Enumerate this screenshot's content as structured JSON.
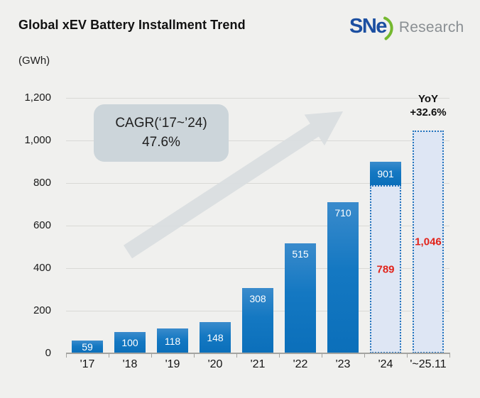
{
  "header": {
    "title": "Global xEV Battery Installment Trend",
    "logo": {
      "brand": "SNe",
      "suffix": "Research"
    }
  },
  "chart_data": {
    "type": "bar",
    "title": "Global xEV Battery Installment Trend",
    "unit": "GWh",
    "ylabel": "(GWh)",
    "xlabel": "",
    "ylim": [
      0,
      1200
    ],
    "ytick_interval": 200,
    "ytick_labels": [
      "1,200",
      "1,000",
      "800",
      "600",
      "400",
      "200",
      "0"
    ],
    "grid": true,
    "legend": false,
    "categories": [
      "'17",
      "'18",
      "'19",
      "'20",
      "'21",
      "'22",
      "'23",
      "'24",
      "'~25.11"
    ],
    "bars": [
      {
        "category": "'17",
        "value": 59,
        "display": "59",
        "style": "actual"
      },
      {
        "category": "'18",
        "value": 100,
        "display": "100",
        "style": "actual"
      },
      {
        "category": "'19",
        "value": 118,
        "display": "118",
        "style": "actual"
      },
      {
        "category": "'20",
        "value": 148,
        "display": "148",
        "style": "actual"
      },
      {
        "category": "'21",
        "value": 308,
        "display": "308",
        "style": "actual"
      },
      {
        "category": "'22",
        "value": 515,
        "display": "515",
        "style": "actual"
      },
      {
        "category": "'23",
        "value": 710,
        "display": "710",
        "style": "actual"
      },
      {
        "category": "'24",
        "value": 901,
        "display": "901",
        "style": "actual-plus-estimate",
        "estimate_value": 789,
        "estimate_display": "789"
      },
      {
        "category": "'~25.11",
        "value": 1046,
        "display": "1,046",
        "style": "estimate"
      }
    ],
    "annotations": {
      "cagr": {
        "line1": "CAGR(‘17~’24)",
        "line2": "47.6%"
      },
      "yoy": {
        "line1": "YoY",
        "line2": "+32.6%"
      }
    },
    "colors": {
      "bar_blue_top": "#3a8bcc",
      "bar_blue_bottom": "#0b6fba",
      "estimate_fill": "#dee6f4",
      "estimate_border": "#2173bd",
      "estimate_text_red": "#e2231a",
      "arrow_gray": "#d9dddf",
      "cagr_box": "#ccd5da",
      "logo_blue": "#1c4fa1",
      "logo_green": "#74b82e",
      "background": "#f0f0ee"
    }
  }
}
